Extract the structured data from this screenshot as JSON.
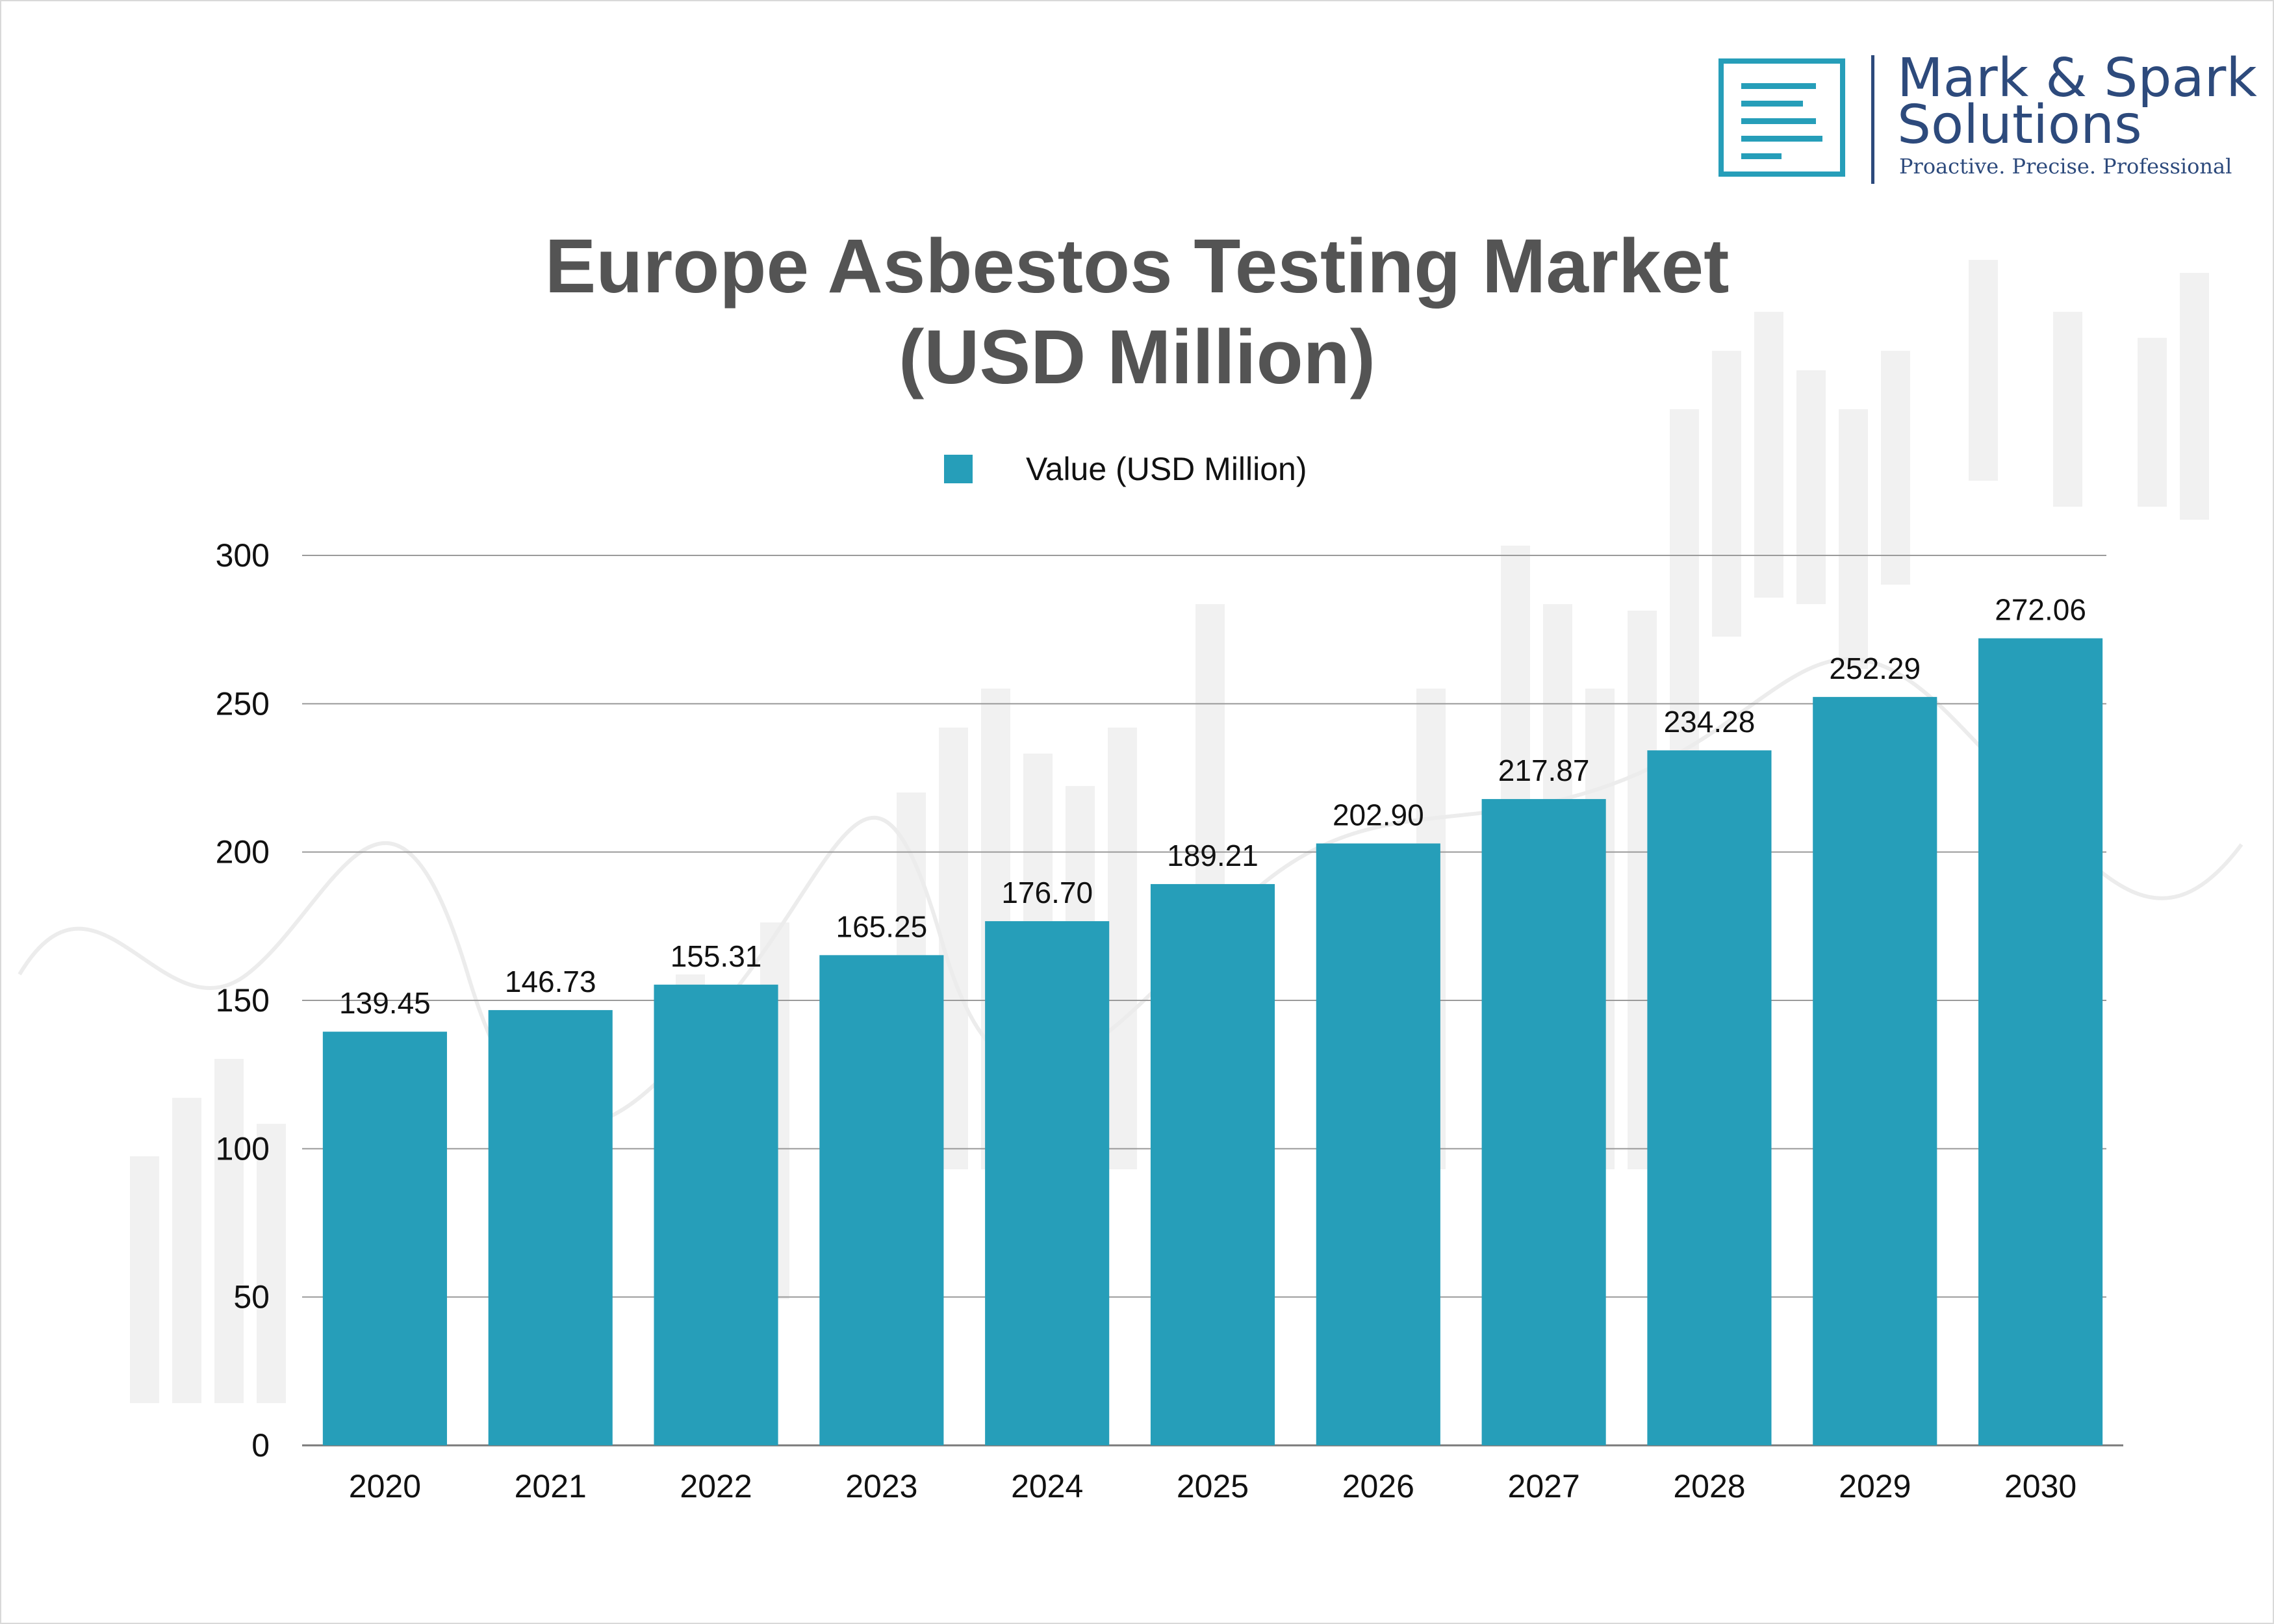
{
  "logo": {
    "name_line1": "Mark & Spark",
    "name_line2": "Solutions",
    "tagline": "Proactive. Precise. Professional"
  },
  "colors": {
    "bar": "#269eb9",
    "title": "#545454",
    "brand": "#2d4a7c",
    "grid": "#9a9a9a"
  },
  "chart_data": {
    "type": "bar",
    "title_line1": "Europe Asbestos Testing Market",
    "title_line2": "(USD Million)",
    "legend": [
      "Value (USD Million)"
    ],
    "legend_position": "top-center",
    "grid": true,
    "categories": [
      "2020",
      "2021",
      "2022",
      "2023",
      "2024",
      "2025",
      "2026",
      "2027",
      "2028",
      "2029",
      "2030"
    ],
    "series": [
      {
        "name": "Value (USD Million)",
        "values": [
          139.45,
          146.73,
          155.31,
          165.25,
          176.7,
          189.21,
          202.9,
          217.87,
          234.28,
          252.29,
          272.06
        ]
      }
    ],
    "data_labels": [
      "139.45",
      "146.73",
      "155.31",
      "165.25",
      "176.70",
      "189.21",
      "202.90",
      "217.87",
      "234.28",
      "252.29",
      "272.06"
    ],
    "yticks": [
      "0",
      "50",
      "100",
      "150",
      "200",
      "250",
      "300"
    ],
    "ylim": [
      0,
      300
    ]
  }
}
